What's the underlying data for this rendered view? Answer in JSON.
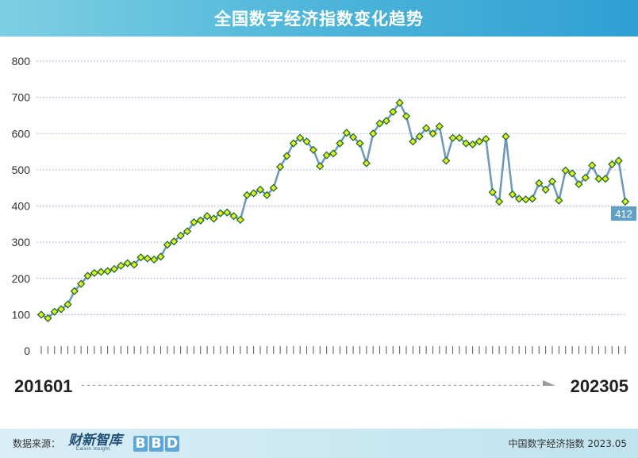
{
  "header": {
    "title": "全国数字经济指数变化趋势"
  },
  "chart_data": {
    "type": "line",
    "title": "全国数字经济指数变化趋势",
    "ylim": [
      0,
      800
    ],
    "yticks": [
      "0",
      "100",
      "200",
      "300",
      "400",
      "500",
      "600",
      "700",
      "800"
    ],
    "grid": true,
    "x_start": "201601",
    "x_end": "202305",
    "last_value_label": "412",
    "series": [
      {
        "values": [
          100,
          90,
          108,
          115,
          128,
          165,
          185,
          207,
          215,
          218,
          220,
          226,
          235,
          242,
          238,
          258,
          255,
          252,
          260,
          293,
          302,
          318,
          330,
          355,
          360,
          372,
          365,
          380,
          382,
          372,
          362,
          430,
          435,
          445,
          430,
          450,
          508,
          538,
          573,
          588,
          578,
          555,
          510,
          540,
          545,
          573,
          602,
          590,
          573,
          518,
          600,
          628,
          635,
          660,
          685,
          648,
          578,
          592,
          615,
          600,
          620,
          525,
          588,
          588,
          573,
          570,
          578,
          585,
          438,
          412,
          592,
          432,
          420,
          418,
          420,
          463,
          445,
          468,
          415,
          498,
          490,
          460,
          478,
          512,
          475,
          475,
          515,
          525,
          412
        ]
      }
    ]
  },
  "footer": {
    "source_label": "数据来源：",
    "logo_text": "财新智库",
    "logo_sub": "Caixin Insight",
    "bbd_letters": [
      "B",
      "B",
      "D"
    ],
    "right_text": "中国数字经济指数 2023.05"
  },
  "colors": {
    "line": "#6b98c0",
    "marker_fill": "#e8ef1a",
    "marker_stroke": "#1d6f2e",
    "label_bg": "#5fa0c4",
    "header": "#4ab3d9"
  }
}
